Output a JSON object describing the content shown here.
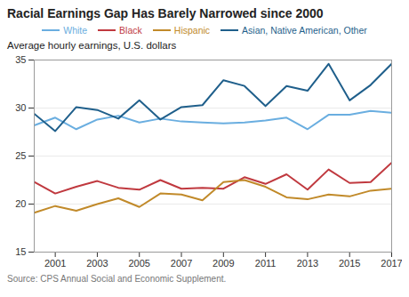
{
  "chart_data": {
    "type": "line",
    "title": "Racial Earnings Gap Has Barely Narrowed since 2000",
    "ylabel": "Average hourly earnings, U.S. dollars",
    "caption": "Source: CPS Annual Social and Economic Supplement.",
    "x": [
      2000,
      2001,
      2002,
      2003,
      2004,
      2005,
      2006,
      2007,
      2008,
      2009,
      2010,
      2011,
      2012,
      2013,
      2014,
      2015,
      2016,
      2017
    ],
    "series": [
      {
        "name": "White",
        "color": "#6aaee0",
        "values": [
          28.2,
          29.0,
          27.8,
          28.8,
          29.2,
          28.5,
          28.9,
          28.6,
          28.5,
          28.4,
          28.5,
          28.7,
          29.0,
          27.8,
          29.3,
          29.3,
          29.7,
          29.5
        ]
      },
      {
        "name": "Black",
        "color": "#c0393f",
        "values": [
          22.3,
          21.1,
          21.8,
          22.4,
          21.7,
          21.5,
          22.5,
          21.6,
          21.7,
          21.6,
          22.8,
          22.1,
          23.1,
          21.5,
          23.6,
          22.2,
          22.3,
          24.3
        ]
      },
      {
        "name": "Hispanic",
        "color": "#c18a2a",
        "values": [
          19.1,
          19.8,
          19.3,
          20.0,
          20.6,
          19.7,
          21.1,
          21.0,
          20.4,
          22.3,
          22.5,
          21.8,
          20.7,
          20.5,
          21.0,
          20.8,
          21.4,
          21.6
        ]
      },
      {
        "name": "Asian, Native American, Other",
        "color": "#1f5f8b",
        "values": [
          29.4,
          27.6,
          30.1,
          29.8,
          28.9,
          30.8,
          28.8,
          30.1,
          30.3,
          32.9,
          32.3,
          30.2,
          32.3,
          31.8,
          34.6,
          30.8,
          32.4,
          34.6
        ]
      }
    ],
    "xlim": [
      2000,
      2017
    ],
    "xticks": [
      2001,
      2003,
      2005,
      2007,
      2009,
      2011,
      2013,
      2015,
      2017
    ],
    "ylim": [
      15,
      35
    ],
    "yticks": [
      15,
      20,
      25,
      30,
      35
    ],
    "grid": true,
    "legend": "top"
  }
}
